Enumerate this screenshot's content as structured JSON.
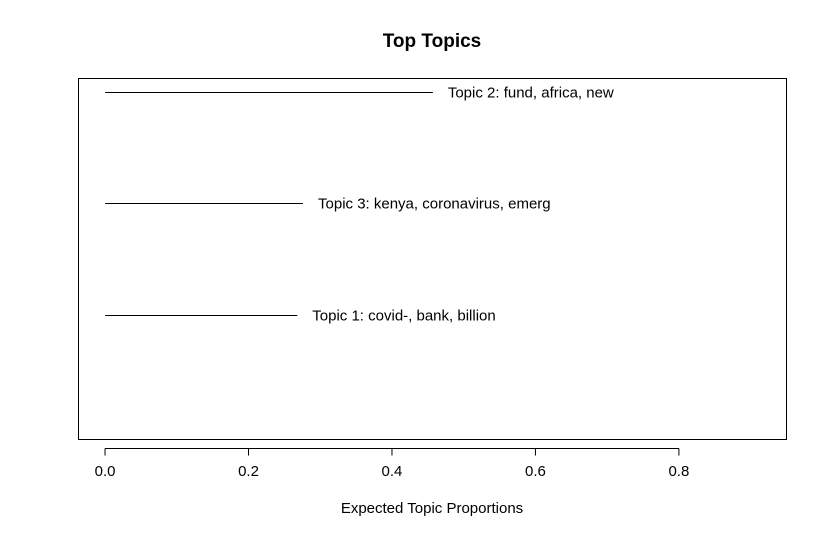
{
  "chart_data": {
    "type": "bar",
    "title": "Top Topics",
    "xlabel": "Expected Topic Proportions",
    "ylabel": "",
    "xlim": [
      -0.037,
      0.95
    ],
    "xticks": [
      0.0,
      0.2,
      0.4,
      0.6,
      0.8
    ],
    "xtick_labels": [
      "0.0",
      "0.2",
      "0.4",
      "0.6",
      "0.8"
    ],
    "orientation": "horizontal",
    "grid": false,
    "legend": "none",
    "bars": [
      {
        "label": "Topic 2: fund, africa, new",
        "value": 0.457
      },
      {
        "label": "Topic 3: kenya, coronavirus, emerg",
        "value": 0.276
      },
      {
        "label": "Topic 1: covid-, bank, billion",
        "value": 0.268
      }
    ]
  }
}
